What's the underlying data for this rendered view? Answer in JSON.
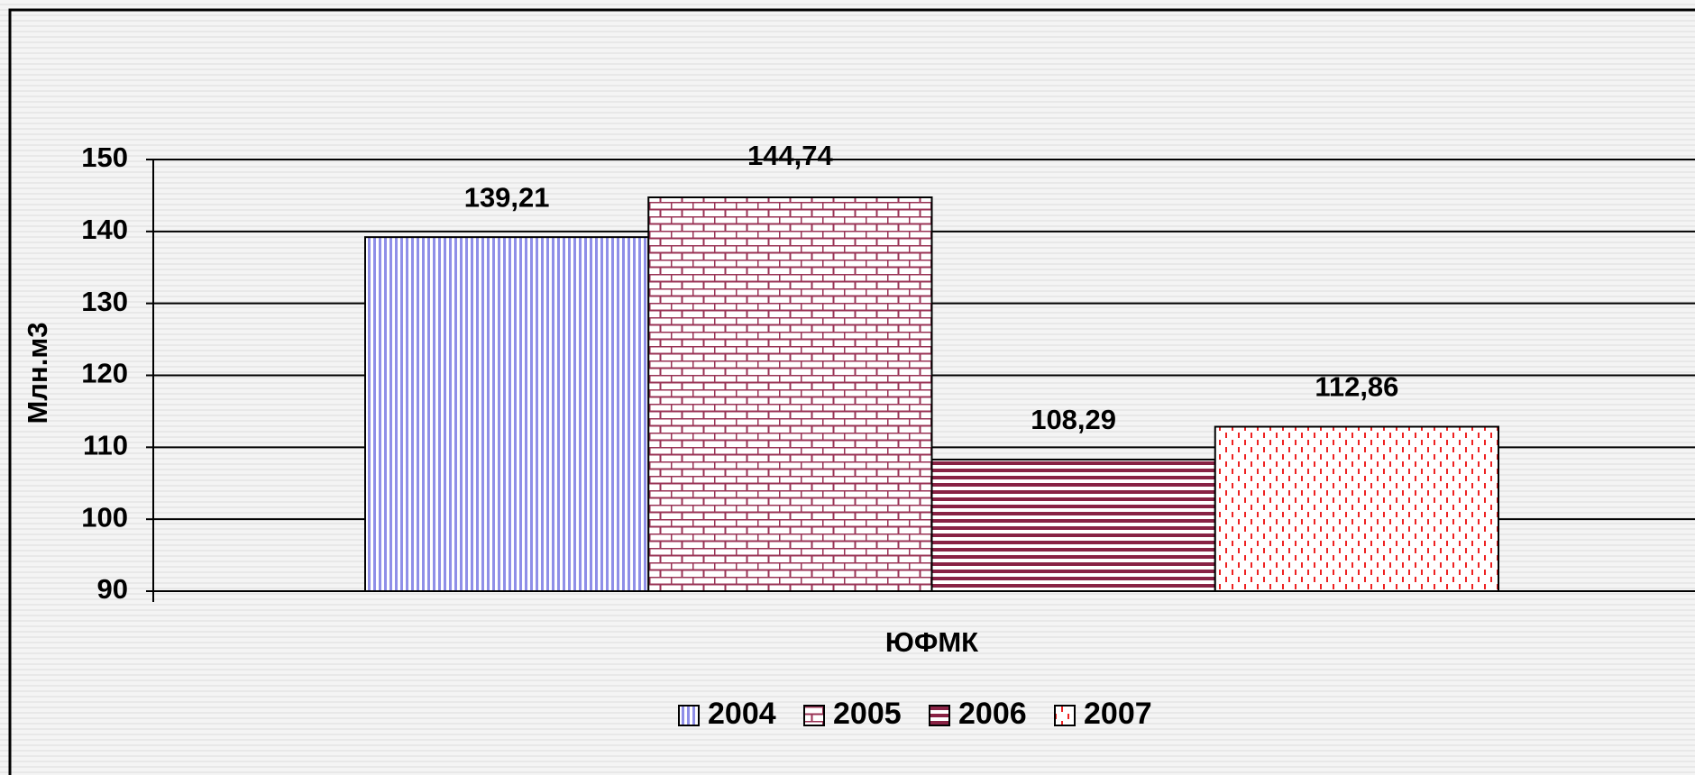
{
  "chart_data": {
    "type": "bar",
    "y_label": "Млн.м3",
    "categories": [
      "ЮФМК"
    ],
    "series": [
      {
        "name": "2004",
        "color": "#8f8fe8",
        "pattern": "vertical",
        "values": [
          139.21
        ],
        "value_labels": [
          "139,21"
        ]
      },
      {
        "name": "2005",
        "color": "#993355",
        "pattern": "brick",
        "values": [
          144.74
        ],
        "value_labels": [
          "144,74"
        ]
      },
      {
        "name": "2006",
        "color": "#882244",
        "pattern": "horizontal",
        "values": [
          108.29
        ],
        "value_labels": [
          "108,29"
        ]
      },
      {
        "name": "2007",
        "color": "#ee2222",
        "pattern": "dashed-vertical",
        "values": [
          112.86
        ],
        "value_labels": [
          "112,86"
        ]
      }
    ],
    "ylim": [
      90,
      150
    ],
    "yticks": [
      90,
      100,
      110,
      120,
      130,
      140,
      150
    ],
    "grid": true,
    "legend": "bottom"
  }
}
